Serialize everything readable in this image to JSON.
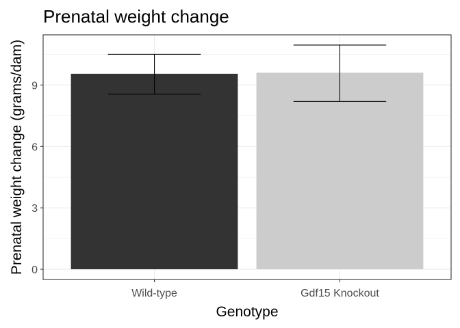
{
  "chart_data": {
    "type": "bar",
    "title": "Prenatal weight change",
    "xlabel": "Genotype",
    "ylabel": "Prenatal weight change (grams/dam)",
    "categories": [
      "Wild-type",
      "Gdf15 Knockout"
    ],
    "values": [
      9.55,
      9.6
    ],
    "error_upper": [
      10.5,
      10.95
    ],
    "error_lower": [
      8.55,
      8.2
    ],
    "colors": [
      "#333333",
      "#cccccc"
    ],
    "ylim": [
      -0.5,
      11.45
    ],
    "yticks": [
      0,
      3,
      6,
      9
    ],
    "ytick_labels": [
      "0",
      "3",
      "6",
      "9"
    ],
    "grid": true,
    "legend": "none"
  }
}
